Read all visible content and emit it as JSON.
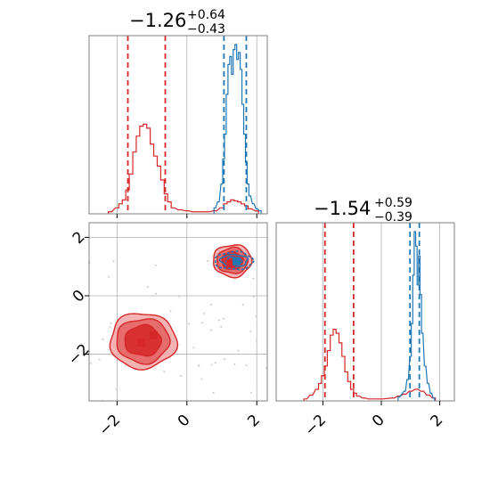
{
  "colors": {
    "red": "#d62728",
    "blue": "#1f77b4",
    "grid": "#b0b0b0",
    "scatter": "#c8c8c8"
  },
  "titles": {
    "x": {
      "main": "−1.26",
      "upper": "+0.64",
      "lower": "−0.43"
    },
    "y": {
      "main": "−1.54",
      "upper": "+0.59",
      "lower": "−0.39"
    }
  },
  "ticks": {
    "x": [
      {
        "value": -2,
        "label": "−2"
      },
      {
        "value": 0,
        "label": "0"
      },
      {
        "value": 2,
        "label": "2"
      }
    ],
    "y": [
      {
        "value": 2,
        "label": "2"
      },
      {
        "value": 0,
        "label": "0"
      },
      {
        "value": -2,
        "label": "−2"
      }
    ]
  },
  "chart_data": [
    {
      "type": "histogram",
      "panel": "x-marginal",
      "xlim": [
        -2.8,
        2.3
      ],
      "grid": true,
      "title": "−1.26 +0.64 −0.43",
      "series": [
        {
          "name": "",
          "color": "red",
          "x": [
            -2.2,
            -2.0,
            -1.9,
            -1.8,
            -1.7,
            -1.6,
            -1.5,
            -1.4,
            -1.3,
            -1.2,
            -1.1,
            -1.0,
            -0.9,
            -0.8,
            -0.7,
            -0.6,
            -0.5,
            -0.4,
            -0.2,
            0.0,
            0.2,
            0.4,
            0.6,
            0.8,
            1.0,
            1.1,
            1.2,
            1.3,
            1.4,
            1.5,
            1.6,
            1.7,
            1.8,
            2.0
          ],
          "counts": [
            2,
            6,
            10,
            14,
            24,
            40,
            62,
            78,
            88,
            90,
            86,
            70,
            58,
            48,
            34,
            20,
            12,
            6,
            4,
            3,
            2,
            2,
            2,
            3,
            6,
            10,
            12,
            14,
            13,
            12,
            10,
            8,
            5,
            3
          ]
        },
        {
          "name": "",
          "color": "blue",
          "x": [
            0.8,
            0.9,
            1.0,
            1.05,
            1.1,
            1.15,
            1.2,
            1.25,
            1.3,
            1.35,
            1.4,
            1.45,
            1.5,
            1.55,
            1.6,
            1.65,
            1.7,
            1.75,
            1.8,
            1.9,
            2.0,
            2.1
          ],
          "counts": [
            6,
            12,
            30,
            55,
            80,
            120,
            150,
            158,
            140,
            165,
            170,
            155,
            162,
            145,
            110,
            80,
            52,
            30,
            18,
            10,
            5,
            3
          ]
        }
      ],
      "vlines": [
        {
          "value": -1.69,
          "color": "red"
        },
        {
          "value": -0.62,
          "color": "red"
        },
        {
          "value": 1.06,
          "color": "blue"
        },
        {
          "value": 1.7,
          "color": "blue"
        }
      ]
    },
    {
      "type": "contour",
      "panel": "2d-density",
      "xlim": [
        -2.8,
        2.3
      ],
      "ylim": [
        -3.6,
        2.5
      ],
      "grid": true,
      "series": [
        {
          "name": "",
          "color": "red",
          "center": [
            -1.26,
            -1.54
          ],
          "spread": [
            0.95,
            0.95
          ]
        },
        {
          "name": "",
          "color": "red",
          "center": [
            1.3,
            1.2
          ],
          "spread": [
            0.55,
            0.55
          ]
        },
        {
          "name": "",
          "color": "blue",
          "center": [
            1.35,
            1.2
          ],
          "spread": [
            0.55,
            0.3
          ]
        }
      ],
      "markers": [
        {
          "x": -1.3,
          "y": -1.6,
          "color": "red"
        },
        {
          "x": -0.95,
          "y": -1.35,
          "color": "red"
        },
        {
          "x": 1.25,
          "y": 1.1,
          "color": "red"
        },
        {
          "x": 1.42,
          "y": 1.18,
          "color": "blue"
        }
      ]
    },
    {
      "type": "histogram",
      "panel": "y-marginal",
      "xlim": [
        -3.6,
        2.5
      ],
      "grid": true,
      "title": "−1.54 +0.59 −0.39",
      "series": [
        {
          "name": "",
          "color": "red",
          "x": [
            -2.6,
            -2.4,
            -2.2,
            -2.1,
            -2.0,
            -1.9,
            -1.8,
            -1.7,
            -1.6,
            -1.5,
            -1.4,
            -1.3,
            -1.2,
            -1.1,
            -1.0,
            -0.9,
            -0.8,
            -0.6,
            -0.4,
            0.0,
            0.4,
            0.6,
            0.8,
            1.0,
            1.2,
            1.4,
            1.6,
            1.8
          ],
          "counts": [
            2,
            6,
            12,
            18,
            26,
            36,
            52,
            68,
            74,
            70,
            60,
            46,
            30,
            20,
            12,
            8,
            5,
            3,
            2,
            2,
            3,
            5,
            7,
            10,
            12,
            10,
            6,
            3
          ]
        },
        {
          "name": "",
          "color": "blue",
          "x": [
            0.6,
            0.8,
            0.9,
            1.0,
            1.05,
            1.1,
            1.15,
            1.2,
            1.25,
            1.3,
            1.35,
            1.4,
            1.5,
            1.6,
            1.7,
            1.8
          ],
          "counts": [
            4,
            10,
            22,
            46,
            80,
            130,
            175,
            160,
            120,
            150,
            110,
            70,
            36,
            18,
            8,
            3
          ]
        }
      ],
      "vlines": [
        {
          "value": -1.93,
          "color": "red"
        },
        {
          "value": -0.95,
          "color": "red"
        },
        {
          "value": 0.98,
          "color": "blue"
        },
        {
          "value": 1.3,
          "color": "blue"
        }
      ]
    }
  ]
}
